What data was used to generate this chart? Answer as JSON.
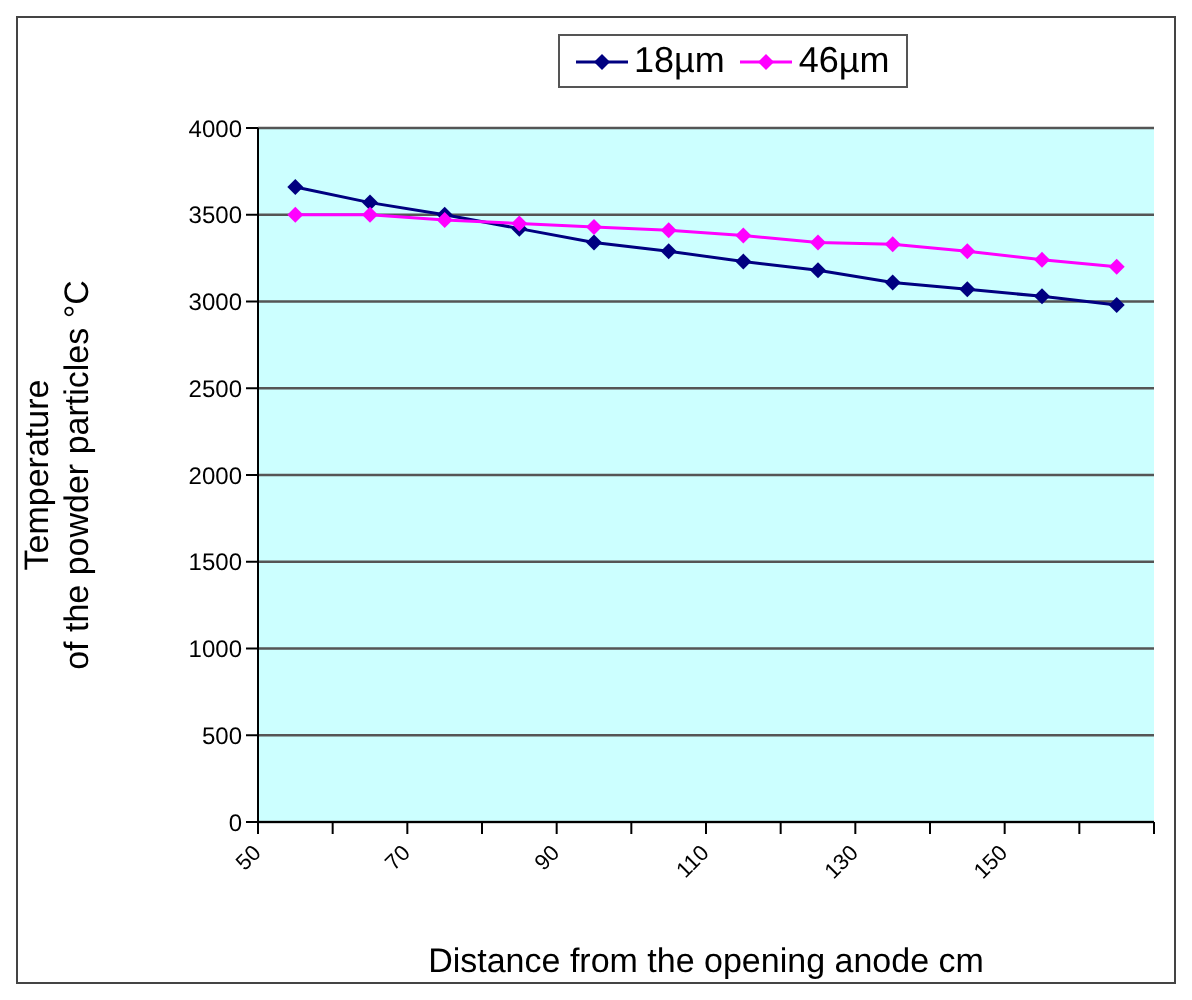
{
  "chart_data": {
    "type": "line",
    "xlabel": "Distance from the opening anode   cm",
    "ylabel": "Temperature\nof the powder particles   °C",
    "x": [
      55,
      65,
      75,
      85,
      95,
      105,
      115,
      125,
      135,
      145,
      155,
      165
    ],
    "series": [
      {
        "name": "18µm",
        "color": "#000080",
        "values": [
          3660,
          3570,
          3500,
          3420,
          3340,
          3290,
          3230,
          3180,
          3110,
          3070,
          3030,
          2980
        ]
      },
      {
        "name": "46µm",
        "color": "#ff00ff",
        "values": [
          3500,
          3500,
          3470,
          3450,
          3430,
          3410,
          3380,
          3340,
          3330,
          3290,
          3240,
          3200
        ]
      }
    ],
    "xlim": [
      50,
      170
    ],
    "xticks": [
      50,
      {
        "value": 60,
        "label": null
      },
      70,
      {
        "value": 80,
        "label": null
      },
      90,
      {
        "value": 100,
        "label": null
      },
      110,
      {
        "value": 120,
        "label": null
      },
      130,
      {
        "value": 140,
        "label": null
      },
      150,
      {
        "value": 160,
        "label": null
      },
      {
        "value": 170,
        "label": null
      }
    ],
    "ylim": [
      0,
      4000
    ],
    "yticks": [
      0,
      500,
      1000,
      1500,
      2000,
      2500,
      3000,
      3500,
      4000
    ],
    "grid": "y",
    "legend": "top",
    "marker": "diamond",
    "line_style": "solid"
  }
}
